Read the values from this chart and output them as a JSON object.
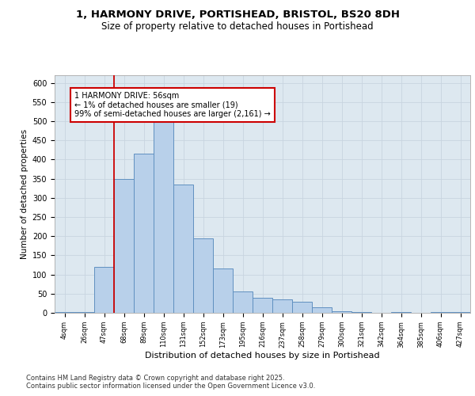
{
  "title_line1": "1, HARMONY DRIVE, PORTISHEAD, BRISTOL, BS20 8DH",
  "title_line2": "Size of property relative to detached houses in Portishead",
  "xlabel": "Distribution of detached houses by size in Portishead",
  "ylabel": "Number of detached properties",
  "categories": [
    "4sqm",
    "26sqm",
    "47sqm",
    "68sqm",
    "89sqm",
    "110sqm",
    "131sqm",
    "152sqm",
    "173sqm",
    "195sqm",
    "216sqm",
    "237sqm",
    "258sqm",
    "279sqm",
    "300sqm",
    "321sqm",
    "342sqm",
    "364sqm",
    "385sqm",
    "406sqm",
    "427sqm"
  ],
  "values": [
    2,
    2,
    120,
    350,
    415,
    510,
    335,
    195,
    115,
    55,
    40,
    35,
    28,
    15,
    5,
    2,
    1,
    2,
    1,
    2,
    2
  ],
  "bar_color": "#b8d0ea",
  "bar_edge_color": "#6090c0",
  "grid_color": "#c8d4e0",
  "bg_color": "#dde8f0",
  "vline_color": "#cc0000",
  "vline_x_index": 2.5,
  "annotation_text": "1 HARMONY DRIVE: 56sqm\n← 1% of detached houses are smaller (19)\n99% of semi-detached houses are larger (2,161) →",
  "annotation_box_color": "#cc0000",
  "footer": "Contains HM Land Registry data © Crown copyright and database right 2025.\nContains public sector information licensed under the Open Government Licence v3.0.",
  "ylim": [
    0,
    620
  ],
  "yticks": [
    0,
    50,
    100,
    150,
    200,
    250,
    300,
    350,
    400,
    450,
    500,
    550,
    600
  ]
}
